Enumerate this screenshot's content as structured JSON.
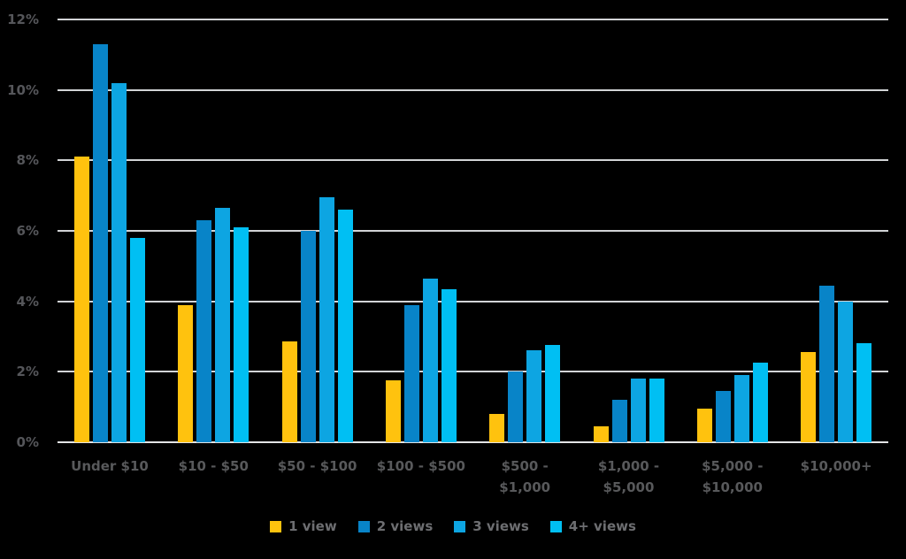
{
  "chart_data": {
    "type": "bar",
    "title": "",
    "xlabel": "",
    "ylabel": "",
    "ylim": [
      0,
      12
    ],
    "grid": true,
    "legend_position": "bottom",
    "background_color": "#000000",
    "gridline_color": "#d2d4d6",
    "axis_text_color": "#58595b",
    "yticks": [
      {
        "value": 0,
        "label": "0%"
      },
      {
        "value": 2,
        "label": "2%"
      },
      {
        "value": 4,
        "label": "4%"
      },
      {
        "value": 6,
        "label": "6%"
      },
      {
        "value": 8,
        "label": "8%"
      },
      {
        "value": 10,
        "label": "10%"
      },
      {
        "value": 12,
        "label": "12%"
      }
    ],
    "categories": [
      "Under $10",
      "$10 - $50",
      "$50 - $100",
      "$100 - $500",
      "$500 -\n$1,000",
      "$1,000 -\n$5,000",
      "$5,000 -\n$10,000",
      "$10,000+"
    ],
    "series": [
      {
        "name": "1 view",
        "color": "#ffc20e",
        "values": [
          8.1,
          3.9,
          2.85,
          1.75,
          0.8,
          0.45,
          0.95,
          2.55
        ]
      },
      {
        "name": "2 views",
        "color": "#0884c8",
        "values": [
          11.3,
          6.3,
          6.0,
          3.9,
          2.0,
          1.2,
          1.45,
          4.45
        ]
      },
      {
        "name": "3 views",
        "color": "#0da5e2",
        "values": [
          10.2,
          6.65,
          6.95,
          4.65,
          2.6,
          1.8,
          1.9,
          4.0
        ]
      },
      {
        "name": "4+ views",
        "color": "#00bff3",
        "values": [
          5.8,
          6.1,
          6.6,
          4.35,
          2.75,
          1.8,
          2.25,
          2.8
        ]
      }
    ]
  }
}
